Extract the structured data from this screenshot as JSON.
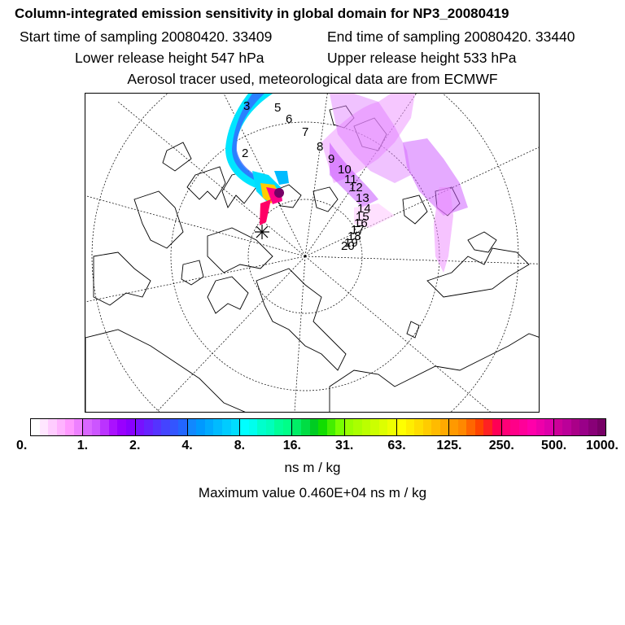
{
  "header": {
    "title": "Column-integrated emission sensitivity in global domain for NP3_20080419",
    "start_time": "Start time of sampling 20080420. 33409",
    "end_time": "End time of sampling 20080420. 33440",
    "lower_release": "Lower release height  547 hPa",
    "upper_release": "Upper release height  533 hPa",
    "tracer_info": "Aerosol tracer used, meteorological data are from ECMWF"
  },
  "map": {
    "projection": "polar-stereographic",
    "trajectory_labels": [
      "2",
      "3",
      "5",
      "6",
      "7",
      "8",
      "9",
      "10",
      "11",
      "12",
      "13",
      "14",
      "15",
      "16",
      "17",
      "18",
      "19",
      "20"
    ],
    "release_marker": "release-site-star"
  },
  "colorbar": {
    "tick_labels": [
      "0.",
      "1.",
      "2.",
      "4.",
      "8.",
      "16.",
      "31.",
      "63.",
      "125.",
      "250.",
      "500.",
      "1000."
    ],
    "colors": [
      "#ffffff",
      "#ffe6ff",
      "#ffccff",
      "#ffb3ff",
      "#ff99ff",
      "#ee80ff",
      "#d966ff",
      "#cc55ff",
      "#bb33ff",
      "#aa11ff",
      "#9900ff",
      "#8800ff",
      "#7711ff",
      "#6622ff",
      "#5533ff",
      "#4444ff",
      "#3355ff",
      "#2266ff",
      "#1188ff",
      "#0099ff",
      "#00aaff",
      "#00bbff",
      "#00ccff",
      "#00ddff",
      "#00ffff",
      "#00ffee",
      "#00ffcc",
      "#00ffbb",
      "#00ff99",
      "#00ff88",
      "#00ee66",
      "#00dd44",
      "#00cc22",
      "#11dd00",
      "#44ee00",
      "#77ff00",
      "#99ff00",
      "#aaff00",
      "#bbff00",
      "#ccff00",
      "#ddff00",
      "#eeff00",
      "#ffff00",
      "#ffee00",
      "#ffdd00",
      "#ffcc00",
      "#ffbb00",
      "#ffaa00",
      "#ff9900",
      "#ff8800",
      "#ff6600",
      "#ff4400",
      "#ff2222",
      "#ff0055",
      "#ff0077",
      "#ff0088",
      "#ff0099",
      "#ff00aa",
      "#ee00aa",
      "#dd00aa",
      "#cc0099",
      "#bb0099",
      "#aa0088",
      "#990088",
      "#880077",
      "#770066"
    ]
  },
  "units_label": "ns m / kg",
  "max_value": "Maximum value  0.460E+04 ns m / kg"
}
